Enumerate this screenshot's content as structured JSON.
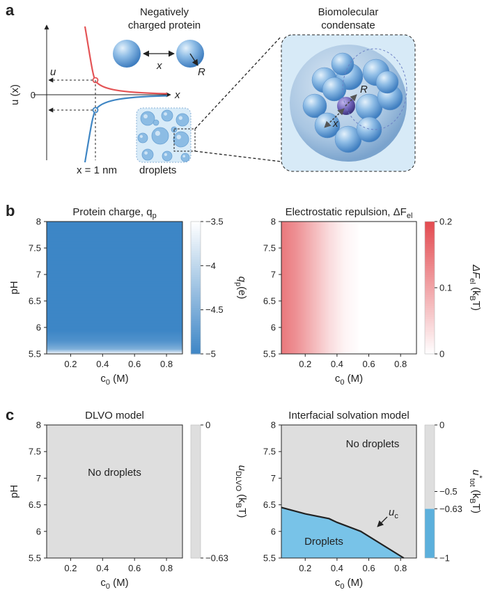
{
  "panel_a": {
    "label": "a",
    "ylabel": "u (x)",
    "y_zero_tick": "0",
    "u_marker": "u",
    "x_axis_label": "x",
    "x_one_nm": "x = 1 nm",
    "protein_title_line1": "Negatively",
    "protein_title_line2": "charged protein",
    "sep_label": "x",
    "radius_label": "R",
    "droplets_label": "droplets",
    "condensate_title_line1": "Biomolecular",
    "condensate_title_line2": "condensate",
    "condensate_R": "R",
    "condensate_x": "x",
    "colors": {
      "repulsive": "#e45456",
      "attractive": "#3f86c4"
    }
  },
  "panel_b": {
    "label": "b"
  },
  "panel_c": {
    "label": "c",
    "no_droplets_left": "No droplets",
    "no_droplets_right": "No droplets",
    "droplets": "Droplets",
    "uc_label": "u",
    "uc_sub": "c"
  },
  "chart_data": [
    {
      "id": "protein-charge",
      "type": "heatmap",
      "title": "Protein charge, q",
      "title_sub": "p",
      "xlabel": "c",
      "xlabel_sub": "0",
      "xlabel_unit": " (M)",
      "ylabel": "pH",
      "xlim": [
        0.05,
        0.9
      ],
      "ylim": [
        5.5,
        8
      ],
      "xticks": [
        0.2,
        0.4,
        0.6,
        0.8
      ],
      "xtick_labels": [
        "0.2",
        "0.4",
        "0.6",
        "0.8"
      ],
      "yticks": [
        5.5,
        6,
        6.5,
        7,
        7.5,
        8
      ],
      "ytick_labels": [
        "5.5",
        "6",
        "6.5",
        "7",
        "7.5",
        "8"
      ],
      "colorbar": {
        "label": "q",
        "label_sub": "p",
        "label_unit": "(e)",
        "range": [
          -5,
          -3.5
        ],
        "ticks": [
          -5,
          -4.5,
          -4,
          -3.5
        ],
        "tick_labels": [
          "−5",
          "−4.5",
          "−4",
          "−3.5"
        ],
        "colors": [
          "#3d86c6",
          "#ffffff"
        ]
      },
      "profile_axis": "pH",
      "profile": [
        [
          5.5,
          -3.5
        ],
        [
          5.6,
          -4.5
        ],
        [
          5.75,
          -4.85
        ],
        [
          5.95,
          -5
        ],
        [
          8,
          -5
        ]
      ]
    },
    {
      "id": "electrostatic-repulsion",
      "type": "heatmap",
      "title": "Electrostatic repulsion, ΔF",
      "title_sub": "el",
      "xlabel": "c",
      "xlabel_sub": "0",
      "xlabel_unit": " (M)",
      "ylabel": "",
      "xlim": [
        0.05,
        0.9
      ],
      "ylim": [
        5.5,
        8
      ],
      "xticks": [
        0.2,
        0.4,
        0.6,
        0.8
      ],
      "xtick_labels": [
        "0.2",
        "0.4",
        "0.6",
        "0.8"
      ],
      "yticks": [
        5.5,
        6,
        6.5,
        7,
        7.5,
        8
      ],
      "ytick_labels": [
        "5.5",
        "6",
        "6.5",
        "7",
        "7.5",
        "8"
      ],
      "colorbar": {
        "label": "ΔF",
        "label_sub": "el",
        "label_unit": " (k",
        "label_sub2": "B",
        "label_tail": "T)",
        "range": [
          0,
          0.2
        ],
        "ticks": [
          0,
          0.1,
          0.2
        ],
        "tick_labels": [
          "0",
          "0.1",
          "0.2"
        ],
        "colors": [
          "#ffffff",
          "#e34a50"
        ]
      },
      "profile_axis": "c0",
      "profile": [
        [
          0.05,
          0.15
        ],
        [
          0.15,
          0.12
        ],
        [
          0.25,
          0.08
        ],
        [
          0.35,
          0.04
        ],
        [
          0.45,
          0.012
        ],
        [
          0.55,
          0.0
        ],
        [
          0.9,
          0.0
        ]
      ]
    },
    {
      "id": "dlvo-model",
      "type": "heatmap",
      "title": "DLVO model",
      "xlabel": "c",
      "xlabel_sub": "0",
      "xlabel_unit": " (M)",
      "ylabel": "pH",
      "xlim": [
        0.05,
        0.9
      ],
      "ylim": [
        5.5,
        8
      ],
      "xticks": [
        0.2,
        0.4,
        0.6,
        0.8
      ],
      "xtick_labels": [
        "0.2",
        "0.4",
        "0.6",
        "0.8"
      ],
      "yticks": [
        5.5,
        6,
        6.5,
        7,
        7.5,
        8
      ],
      "ytick_labels": [
        "5.5",
        "6",
        "6.5",
        "7",
        "7.5",
        "8"
      ],
      "colorbar": {
        "label": "u",
        "label_sub": "DLVO",
        "label_unit": " (k",
        "label_sub2": "B",
        "label_tail": "T)",
        "range": [
          -0.63,
          0
        ],
        "ticks": [
          -0.63,
          0
        ],
        "tick_labels": [
          "−0.63",
          "0"
        ],
        "colors": [
          "#dedede",
          "#dedede"
        ]
      },
      "fill": "#dedede"
    },
    {
      "id": "interfacial-solvation-model",
      "type": "heatmap",
      "title": "Interfacial solvation model",
      "xlabel": "c",
      "xlabel_sub": "0",
      "xlabel_unit": " (M)",
      "ylabel": "",
      "xlim": [
        0.05,
        0.9
      ],
      "ylim": [
        5.5,
        8
      ],
      "xticks": [
        0.2,
        0.4,
        0.6,
        0.8
      ],
      "xtick_labels": [
        "0.2",
        "0.4",
        "0.6",
        "0.8"
      ],
      "yticks": [
        5.5,
        6,
        6.5,
        7,
        7.5,
        8
      ],
      "ytick_labels": [
        "5.5",
        "6",
        "6.5",
        "7",
        "7.5",
        "8"
      ],
      "colorbar": {
        "label": "u",
        "label_sup": "*",
        "label_sub": "tot",
        "label_unit": " (k",
        "label_sub2": "B",
        "label_tail": "T)",
        "range": [
          -1,
          0
        ],
        "ticks": [
          -1,
          -0.63,
          -0.5,
          0
        ],
        "tick_labels": [
          "−1",
          "−0.63",
          "−0.5",
          "0"
        ],
        "threshold": -0.63,
        "colors": [
          "#5cb0dc",
          "#dedede"
        ]
      },
      "boundary": [
        [
          0.05,
          6.45
        ],
        [
          0.2,
          6.33
        ],
        [
          0.35,
          6.24
        ],
        [
          0.4,
          6.17
        ],
        [
          0.55,
          6.0
        ],
        [
          0.82,
          5.5
        ]
      ],
      "region_colors": {
        "droplets": "#78c3e8",
        "no_droplets": "#dedede"
      }
    }
  ]
}
